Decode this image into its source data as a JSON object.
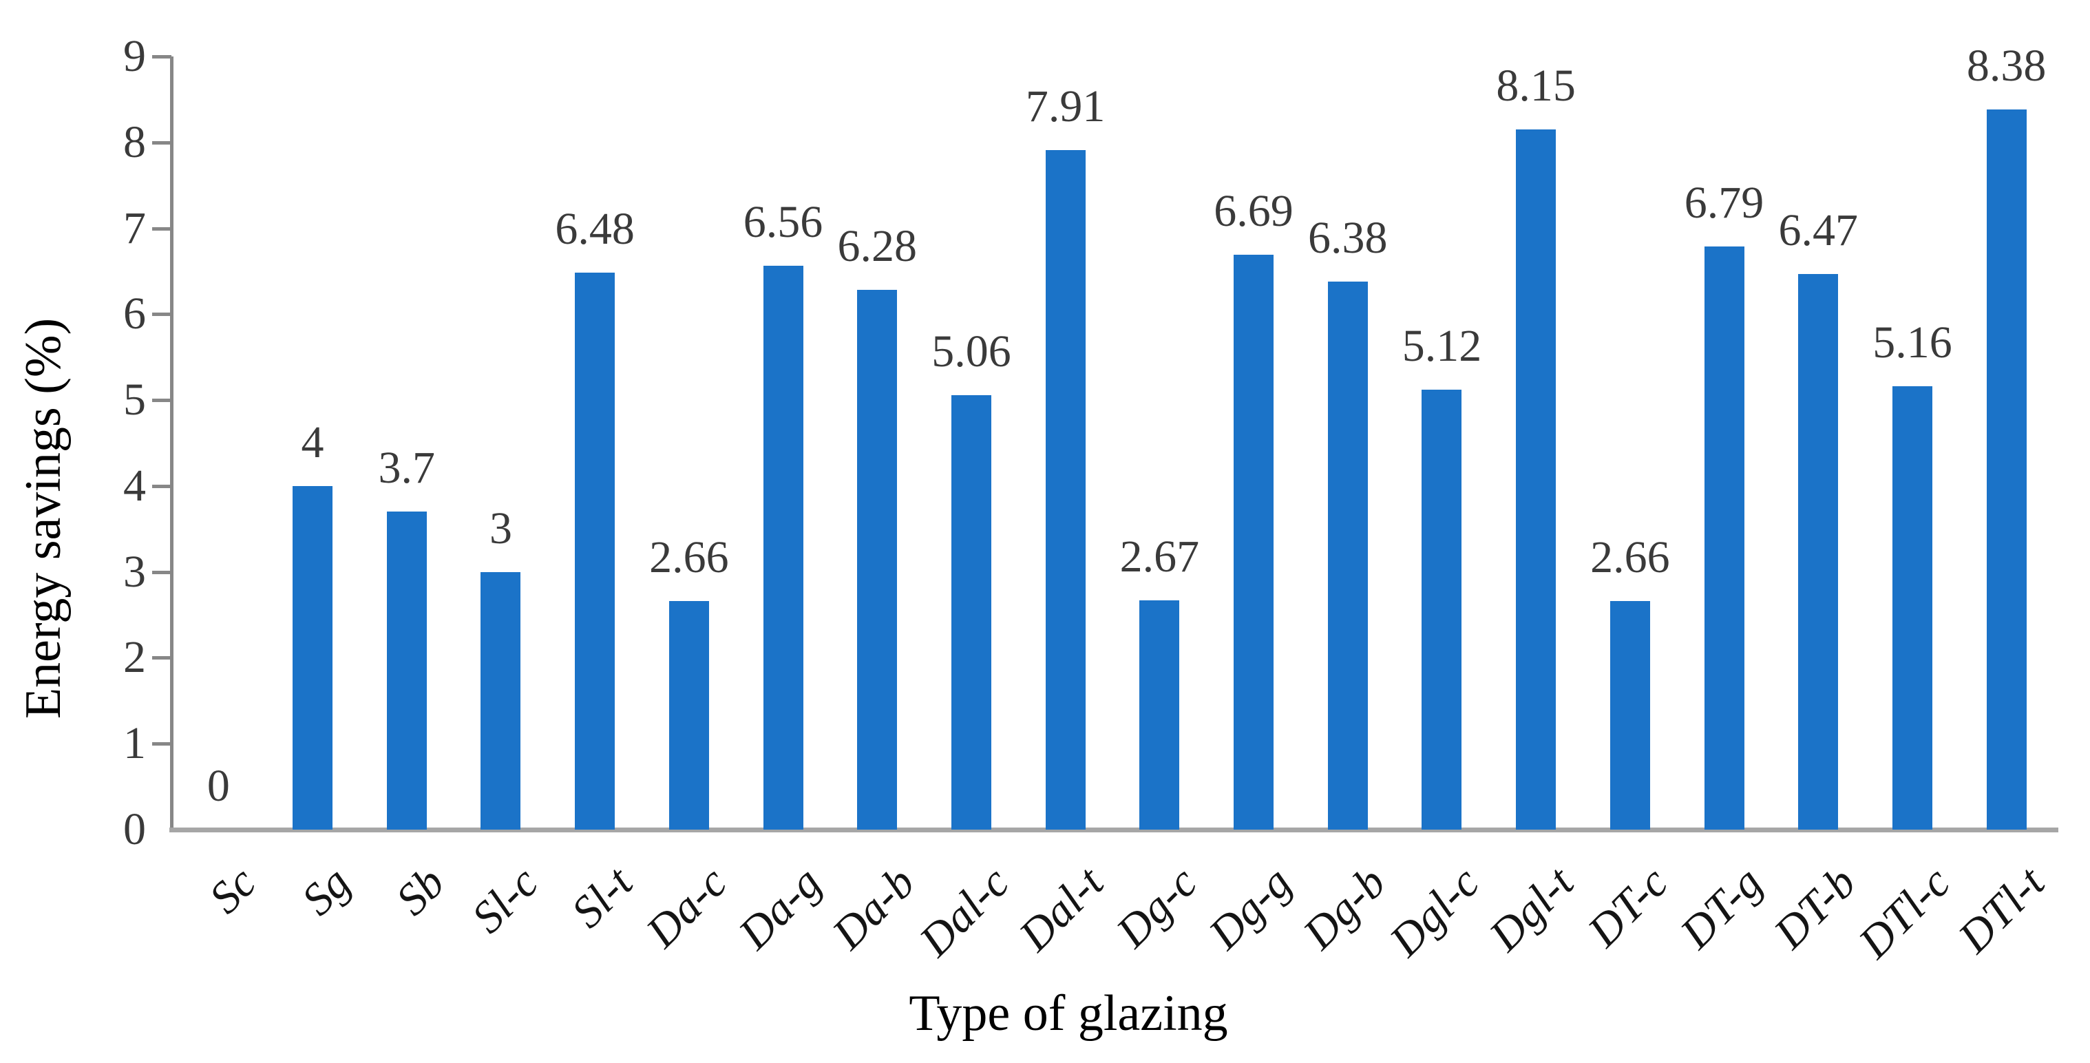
{
  "chart_data": {
    "type": "bar",
    "title": "",
    "xlabel": "Type of glazing",
    "ylabel": "Energy savings (%)",
    "categories": [
      "Sc",
      "Sg",
      "Sb",
      "Sl-c",
      "Sl-t",
      "Da-c",
      "Da-g",
      "Da-b",
      "Dal-c",
      "Dal-t",
      "Dg-c",
      "Dg-g",
      "Dg-b",
      "Dgl-c",
      "Dgl-t",
      "DT-c",
      "DT-g",
      "DT-b",
      "DTl-c",
      "DTl-t"
    ],
    "values": [
      0,
      4,
      3.7,
      3,
      6.48,
      2.66,
      6.56,
      6.28,
      5.06,
      7.91,
      2.67,
      6.69,
      6.38,
      5.12,
      8.15,
      2.66,
      6.79,
      6.47,
      5.16,
      8.38
    ],
    "value_labels": [
      "0",
      "4",
      "3.7",
      "3",
      "6.48",
      "2.66",
      "6.56",
      "6.28",
      "5.06",
      "7.91",
      "2.67",
      "6.69",
      "6.38",
      "5.12",
      "8.15",
      "2.66",
      "6.79",
      "6.47",
      "5.16",
      "8.38"
    ],
    "ylim": [
      0,
      9
    ],
    "yticks": [
      0,
      1,
      2,
      3,
      4,
      5,
      6,
      7,
      8,
      9
    ],
    "grid": false,
    "legend": "none",
    "bar_color": "#1b73c8",
    "axis_color": "#878787",
    "baseline_color": "#a6a6a6",
    "tick_label_color": "#3a3a3a",
    "data_label_color": "#3a3a3a"
  }
}
